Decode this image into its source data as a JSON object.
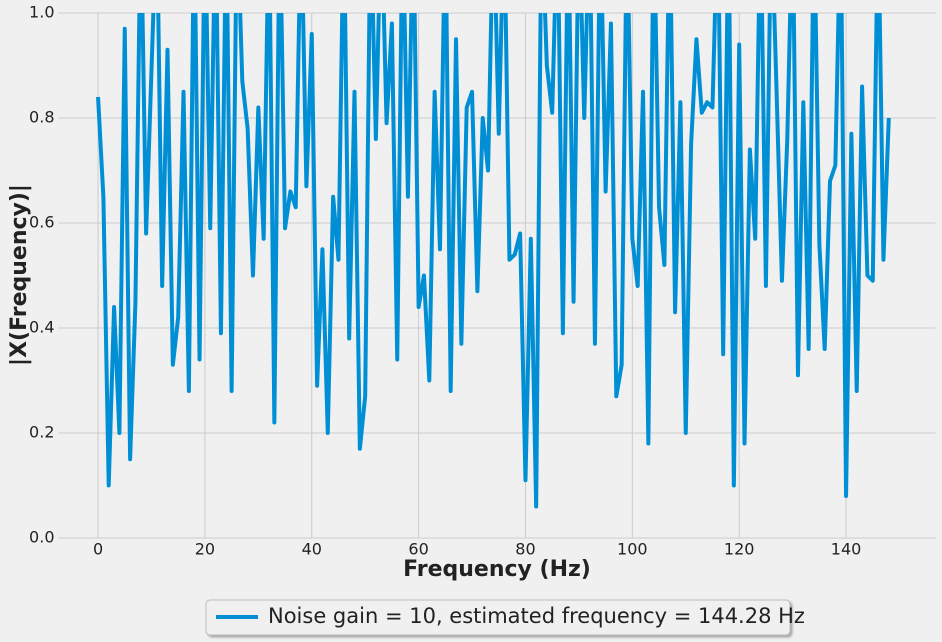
{
  "chart_data": {
    "type": "line",
    "x_label": "Frequency (Hz)",
    "y_label": "|X(Frequency)|",
    "x": [
      0,
      1,
      2,
      3,
      4,
      5,
      6,
      7,
      8,
      9,
      10,
      11,
      12,
      13,
      14,
      15,
      16,
      17,
      18,
      19,
      20,
      21,
      22,
      23,
      24,
      25,
      26,
      27,
      28,
      29,
      30,
      31,
      32,
      33,
      34,
      35,
      36,
      37,
      38,
      39,
      40,
      41,
      42,
      43,
      44,
      45,
      46,
      47,
      48,
      49,
      50,
      51,
      52,
      53,
      54,
      55,
      56,
      57,
      58,
      59,
      60,
      61,
      62,
      63,
      64,
      65,
      66,
      67,
      68,
      69,
      70,
      71,
      72,
      73,
      74,
      75,
      76,
      77,
      78,
      79,
      80,
      81,
      82,
      83,
      84,
      85,
      86,
      87,
      88,
      89,
      90,
      91,
      92,
      93,
      94,
      95,
      96,
      97,
      98,
      99,
      100,
      101,
      102,
      103,
      104,
      105,
      106,
      107,
      108,
      109,
      110,
      111,
      112,
      113,
      114,
      115,
      116,
      117,
      118,
      119,
      120,
      121,
      122,
      123,
      124,
      125,
      126,
      127,
      128,
      129,
      130,
      131,
      132,
      133,
      134,
      135,
      136,
      137,
      138,
      139,
      140,
      141,
      142,
      143,
      144,
      145,
      146,
      147,
      148
    ],
    "series": [
      {
        "name": "Noise gain = 10, estimated frequency = 144.28 Hz",
        "color": "#008fd5",
        "values": [
          0.84,
          0.65,
          0.1,
          0.44,
          0.2,
          0.97,
          0.15,
          0.45,
          1.2,
          0.58,
          0.89,
          1.2,
          0.48,
          0.93,
          0.33,
          0.42,
          0.85,
          0.28,
          1.2,
          0.34,
          1.2,
          0.59,
          1.2,
          0.39,
          1.2,
          0.28,
          1.2,
          0.87,
          0.78,
          0.5,
          0.82,
          0.57,
          1.2,
          0.22,
          1.2,
          0.59,
          0.66,
          0.63,
          1.2,
          0.67,
          0.96,
          0.29,
          0.55,
          0.2,
          0.65,
          0.53,
          1.2,
          0.38,
          0.85,
          0.17,
          0.27,
          1.2,
          0.76,
          1.2,
          0.79,
          0.98,
          0.34,
          1.2,
          0.65,
          1.2,
          0.44,
          0.5,
          0.3,
          0.85,
          0.55,
          1.2,
          0.28,
          0.95,
          0.37,
          0.82,
          0.85,
          0.47,
          0.8,
          0.7,
          1.2,
          0.77,
          1.2,
          0.53,
          0.54,
          0.58,
          0.11,
          0.57,
          0.06,
          1.2,
          0.9,
          0.81,
          1.2,
          0.39,
          1.2,
          0.45,
          1.2,
          0.8,
          1.2,
          0.37,
          1.2,
          0.66,
          0.98,
          0.27,
          0.33,
          1.2,
          0.57,
          0.48,
          0.85,
          0.18,
          1.2,
          0.63,
          0.52,
          1.2,
          0.43,
          0.83,
          0.2,
          0.75,
          0.95,
          0.81,
          0.83,
          0.82,
          1.2,
          0.35,
          1.2,
          0.1,
          0.94,
          0.18,
          0.74,
          0.57,
          1.2,
          0.48,
          1.2,
          0.85,
          0.49,
          0.76,
          1.2,
          0.31,
          0.83,
          0.36,
          1.2,
          0.56,
          0.36,
          0.68,
          0.71,
          1.2,
          0.08,
          0.77,
          0.28,
          0.86,
          0.5,
          0.49,
          1.2,
          0.53,
          0.8
        ]
      }
    ],
    "xlim": [
      -7.4,
      155.6
    ],
    "ylim": [
      0,
      1
    ],
    "xticks": [
      0,
      20,
      40,
      60,
      80,
      100,
      120,
      140
    ],
    "yticks": [
      {
        "value": 0,
        "label": "0.0"
      },
      0.2,
      0.4,
      0.6,
      0.8,
      {
        "value": 1,
        "label": "1.0"
      }
    ],
    "grid": true,
    "legend": "lower center"
  }
}
